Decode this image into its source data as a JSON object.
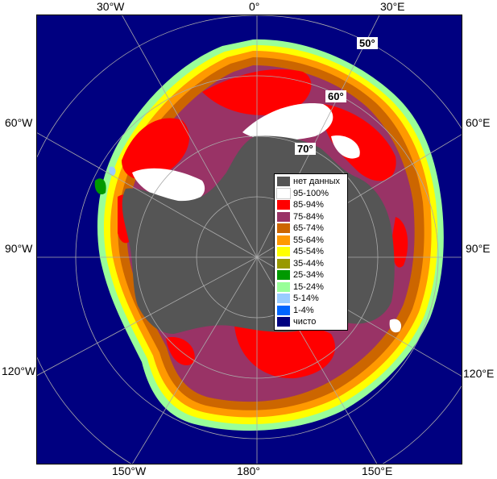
{
  "map": {
    "lon_labels": {
      "top_30w": "30°W",
      "top_0": "0°",
      "top_30e": "30°E",
      "left_60w": "60°W",
      "left_90w": "90°W",
      "left_120w": "120°W",
      "right_60e": "60°E",
      "right_90e": "90°E",
      "right_120e": "120°E",
      "bottom_150w": "150°W",
      "bottom_180": "180°",
      "bottom_150e": "150°E"
    },
    "lat_labels": {
      "lat50": "50°",
      "lat60": "60°",
      "lat70": "70°"
    },
    "colors": {
      "ocean": "#000080",
      "land": "#555555",
      "grid": "#aaaaaa"
    }
  },
  "legend": {
    "items": [
      {
        "label": "нет данных",
        "color": "#555555"
      },
      {
        "label": "95-100%",
        "color": "#ffffff"
      },
      {
        "label": "85-94%",
        "color": "#ff0000"
      },
      {
        "label": "75-84%",
        "color": "#993366"
      },
      {
        "label": "65-74%",
        "color": "#cc6600"
      },
      {
        "label": "55-64%",
        "color": "#ff9900"
      },
      {
        "label": "45-54%",
        "color": "#ffff00"
      },
      {
        "label": "35-44%",
        "color": "#999900"
      },
      {
        "label": "25-34%",
        "color": "#009900"
      },
      {
        "label": "15-24%",
        "color": "#99ff99"
      },
      {
        "label": "5-14%",
        "color": "#99ccff"
      },
      {
        "label": "1-4%",
        "color": "#0066ff"
      },
      {
        "label": "чисто",
        "color": "#000080"
      }
    ]
  }
}
